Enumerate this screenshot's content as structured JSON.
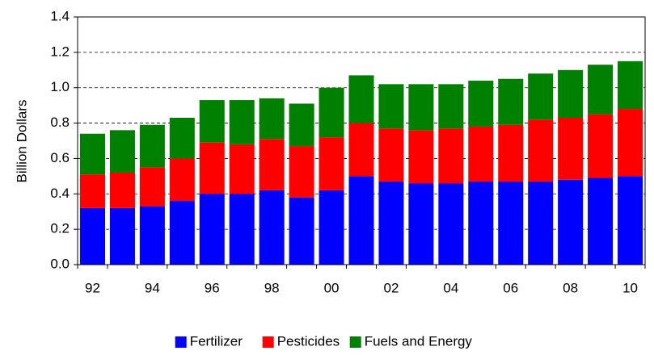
{
  "chart_data": {
    "type": "stacked_bar",
    "y_label": "Billion Dollars",
    "categories": [
      "92",
      null,
      "94",
      null,
      "96",
      null,
      "98",
      null,
      "00",
      null,
      "02",
      null,
      "04",
      null,
      "06",
      null,
      "08",
      null,
      "10"
    ],
    "series": [
      {
        "name": "Fertilizer",
        "color": "#0000ff",
        "values": [
          0.32,
          0.32,
          0.33,
          0.36,
          0.4,
          0.4,
          0.42,
          0.38,
          0.42,
          0.5,
          0.47,
          0.46,
          0.46,
          0.47,
          0.47,
          0.47,
          0.48,
          0.49,
          0.5
        ]
      },
      {
        "name": "Pesticides",
        "color": "#ff0000",
        "values": [
          0.19,
          0.2,
          0.22,
          0.24,
          0.29,
          0.28,
          0.29,
          0.29,
          0.3,
          0.3,
          0.3,
          0.3,
          0.31,
          0.31,
          0.32,
          0.35,
          0.35,
          0.36,
          0.38
        ]
      },
      {
        "name": "Fuels and Energy",
        "color": "#008000",
        "values": [
          0.23,
          0.24,
          0.24,
          0.23,
          0.24,
          0.25,
          0.23,
          0.24,
          0.28,
          0.27,
          0.25,
          0.26,
          0.25,
          0.26,
          0.26,
          0.26,
          0.27,
          0.28,
          0.27
        ]
      }
    ],
    "ylim": [
      0,
      1.4
    ],
    "yticks": [
      {
        "value": 0,
        "label": "0.0"
      },
      0.2,
      0.4,
      0.6,
      0.8,
      {
        "value": 1,
        "label": "1.0"
      },
      1.2,
      1.4
    ],
    "grid": true,
    "legend": "bottom"
  }
}
